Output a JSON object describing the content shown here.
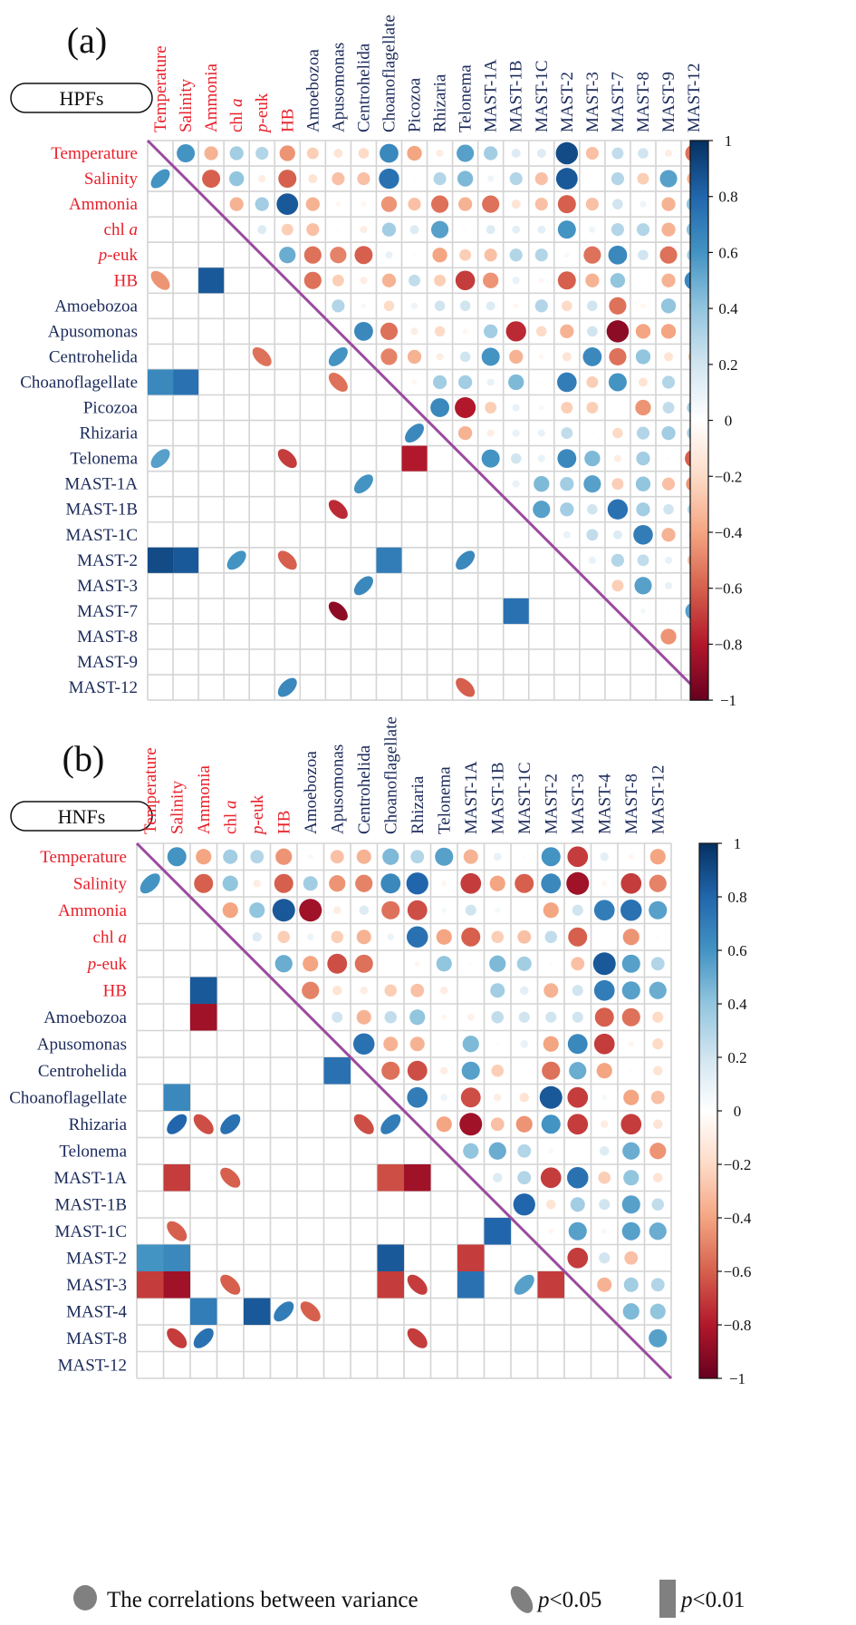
{
  "chart_data": [
    {
      "type": "heatmap",
      "panel_label": "(a)",
      "group_label": "HPFs",
      "variables": [
        "Temperature",
        "Salinity",
        "Ammonia",
        "chl a",
        "p-euk",
        "HB",
        "Amoebozoa",
        "Apusomonas",
        "Centrohelida",
        "Choanoflagellate",
        "Picozoa",
        "Rhizaria",
        "Telonema",
        "MAST-1A",
        "MAST-1B",
        "MAST-1C",
        "MAST-2",
        "MAST-3",
        "MAST-7",
        "MAST-8",
        "MAST-9",
        "MAST-12"
      ],
      "environmental_variables": [
        "Temperature",
        "Salinity",
        "Ammonia",
        "chl a",
        "p-euk",
        "HB"
      ],
      "upper_triangle_rows": [
        [
          0.6,
          -0.35,
          0.35,
          0.3,
          -0.45,
          -0.25,
          -0.15,
          -0.2,
          0.65,
          -0.4,
          -0.1,
          0.55,
          0.35,
          0.15,
          0.15,
          0.9,
          -0.3,
          0.25,
          0.2,
          -0.1,
          -0.55
        ],
        [
          -0.6,
          0.4,
          -0.1,
          -0.6,
          -0.15,
          -0.3,
          -0.3,
          0.75,
          -0.02,
          0.3,
          0.45,
          0.08,
          0.3,
          -0.3,
          0.85,
          -0.02,
          0.3,
          -0.25,
          0.55,
          -0.35
        ],
        [
          -0.35,
          0.35,
          0.85,
          -0.35,
          -0.05,
          -0.05,
          -0.45,
          -0.3,
          -0.55,
          -0.35,
          -0.55,
          -0.15,
          -0.3,
          -0.6,
          -0.3,
          0.2,
          0.08,
          -0.35,
          0.4
        ],
        [
          0.15,
          -0.25,
          -0.3,
          -0.02,
          -0.1,
          0.35,
          0.15,
          0.55,
          -0.02,
          0.15,
          0.12,
          0.12,
          0.6,
          0.08,
          0.3,
          0.3,
          -0.35,
          0.4
        ],
        [
          0.5,
          -0.55,
          -0.5,
          -0.6,
          0.1,
          -0.02,
          -0.4,
          -0.25,
          -0.3,
          0.3,
          0.3,
          0.05,
          -0.55,
          0.65,
          0.2,
          -0.55,
          0.35
        ],
        [
          -0.55,
          -0.25,
          -0.1,
          -0.35,
          0.25,
          -0.25,
          -0.7,
          -0.45,
          0.1,
          -0.05,
          -0.6,
          -0.35,
          0.4,
          0.0,
          -0.35,
          0.65
        ],
        [
          0.3,
          0.05,
          -0.2,
          0.08,
          0.2,
          0.2,
          0.15,
          -0.05,
          0.3,
          -0.2,
          0.2,
          -0.55,
          -0.05,
          0.4,
          -0.2
        ],
        [
          0.65,
          -0.55,
          -0.1,
          -0.2,
          -0.05,
          0.35,
          -0.75,
          -0.2,
          -0.35,
          0.2,
          -0.9,
          -0.4,
          -0.4
        ],
        [
          -0.5,
          -0.35,
          -0.1,
          0.2,
          0.6,
          -0.35,
          -0.05,
          -0.15,
          0.65,
          -0.55,
          0.4,
          -0.15,
          -0.25
        ],
        [
          -0.05,
          0.35,
          0.35,
          0.1,
          0.45,
          -0.02,
          0.7,
          -0.25,
          0.6,
          -0.15,
          0.3,
          -0.15
        ],
        [
          0.65,
          -0.8,
          -0.25,
          0.1,
          0.05,
          -0.25,
          -0.25,
          0.0,
          -0.45,
          0.25,
          0.35
        ],
        [
          -0.35,
          -0.1,
          0.1,
          0.1,
          0.25,
          -0.02,
          -0.2,
          0.3,
          0.35,
          0.35
        ],
        [
          0.6,
          0.2,
          0.1,
          0.65,
          0.45,
          -0.1,
          0.35,
          0.02,
          -0.6
        ],
        [
          0.1,
          0.45,
          0.35,
          0.55,
          -0.25,
          0.4,
          -0.3,
          -0.45
        ],
        [
          0.55,
          0.35,
          0.2,
          0.75,
          0.35,
          0.2,
          0.3
        ],
        [
          0.1,
          0.25,
          0.15,
          0.7,
          -0.35,
          0.2
        ],
        [
          0.1,
          0.3,
          0.25,
          0.1,
          -0.3
        ],
        [
          -0.25,
          0.55,
          0.1,
          0.0
        ],
        [
          0.05,
          0.02,
          0.55
        ],
        [
          -0.45,
          0.1
        ],
        [
          -0.15
        ],
        []
      ],
      "lower_triangle_significant": [
        {
          "row": "Salinity",
          "col": "Temperature",
          "r": 0.6,
          "p": "<0.05"
        },
        {
          "row": "HB",
          "col": "Temperature",
          "r": -0.45,
          "p": "<0.05"
        },
        {
          "row": "HB",
          "col": "Ammonia",
          "r": 0.85,
          "p": "<0.01"
        },
        {
          "row": "Centrohelida",
          "col": "p-euk",
          "r": -0.55,
          "p": "<0.05"
        },
        {
          "row": "Centrohelida",
          "col": "Apusomonas",
          "r": 0.6,
          "p": "<0.05"
        },
        {
          "row": "Choanoflagellate",
          "col": "Temperature",
          "r": 0.65,
          "p": "<0.01"
        },
        {
          "row": "Choanoflagellate",
          "col": "Salinity",
          "r": 0.75,
          "p": "<0.01"
        },
        {
          "row": "Choanoflagellate",
          "col": "Apusomonas",
          "r": -0.55,
          "p": "<0.05"
        },
        {
          "row": "Rhizaria",
          "col": "Picozoa",
          "r": 0.65,
          "p": "<0.05"
        },
        {
          "row": "Telonema",
          "col": "Temperature",
          "r": 0.55,
          "p": "<0.05"
        },
        {
          "row": "Telonema",
          "col": "HB",
          "r": -0.7,
          "p": "<0.05"
        },
        {
          "row": "Telonema",
          "col": "Picozoa",
          "r": -0.8,
          "p": "<0.01"
        },
        {
          "row": "MAST-1A",
          "col": "Centrohelida",
          "r": 0.6,
          "p": "<0.05"
        },
        {
          "row": "MAST-1B",
          "col": "Apusomonas",
          "r": -0.75,
          "p": "<0.05"
        },
        {
          "row": "MAST-2",
          "col": "Temperature",
          "r": 0.9,
          "p": "<0.01"
        },
        {
          "row": "MAST-2",
          "col": "Salinity",
          "r": 0.85,
          "p": "<0.01"
        },
        {
          "row": "MAST-2",
          "col": "chl a",
          "r": 0.6,
          "p": "<0.05"
        },
        {
          "row": "MAST-2",
          "col": "HB",
          "r": -0.6,
          "p": "<0.05"
        },
        {
          "row": "MAST-2",
          "col": "Choanoflagellate",
          "r": 0.7,
          "p": "<0.01"
        },
        {
          "row": "MAST-2",
          "col": "Telonema",
          "r": 0.65,
          "p": "<0.05"
        },
        {
          "row": "MAST-3",
          "col": "Centrohelida",
          "r": 0.65,
          "p": "<0.05"
        },
        {
          "row": "MAST-7",
          "col": "Apusomonas",
          "r": -0.9,
          "p": "<0.05"
        },
        {
          "row": "MAST-7",
          "col": "MAST-1B",
          "r": 0.75,
          "p": "<0.01"
        },
        {
          "row": "MAST-12",
          "col": "HB",
          "r": 0.65,
          "p": "<0.05"
        },
        {
          "row": "MAST-12",
          "col": "Telonema",
          "r": -0.6,
          "p": "<0.05"
        }
      ],
      "colorbar": {
        "min": -1,
        "max": 1,
        "ticks": [
          "1",
          "0.8",
          "0.6",
          "0.4",
          "0.2",
          "0",
          "−0.2",
          "−0.4",
          "−0.6",
          "−0.8",
          "−1"
        ]
      }
    },
    {
      "type": "heatmap",
      "panel_label": "(b)",
      "group_label": "HNFs",
      "variables": [
        "Temperature",
        "Salinity",
        "Ammonia",
        "chl a",
        "p-euk",
        "HB",
        "Amoebozoa",
        "Apusomonas",
        "Centrohelida",
        "Choanoflagellate",
        "Rhizaria",
        "Telonema",
        "MAST-1A",
        "MAST-1B",
        "MAST-1C",
        "MAST-2",
        "MAST-3",
        "MAST-4",
        "MAST-8",
        "MAST-12"
      ],
      "environmental_variables": [
        "Temperature",
        "Salinity",
        "Ammonia",
        "chl a",
        "p-euk",
        "HB"
      ],
      "upper_triangle_rows": [
        [
          0.6,
          -0.4,
          0.35,
          0.3,
          -0.45,
          0.05,
          -0.3,
          -0.35,
          0.45,
          0.3,
          0.55,
          -0.35,
          0.1,
          0.02,
          0.6,
          -0.7,
          0.12,
          -0.05,
          -0.4
        ],
        [
          -0.6,
          0.4,
          -0.1,
          -0.6,
          0.35,
          -0.45,
          -0.5,
          0.65,
          0.8,
          -0.05,
          -0.7,
          -0.4,
          -0.6,
          0.65,
          -0.85,
          -0.05,
          -0.7,
          -0.5
        ],
        [
          -0.4,
          0.4,
          0.85,
          -0.85,
          -0.1,
          0.15,
          -0.55,
          -0.65,
          0.05,
          0.2,
          0.05,
          0.0,
          -0.4,
          0.2,
          0.7,
          0.75,
          0.55
        ],
        [
          0.15,
          -0.25,
          0.08,
          -0.25,
          -0.35,
          0.08,
          0.75,
          -0.4,
          -0.6,
          -0.25,
          -0.3,
          0.25,
          -0.6,
          0.0,
          -0.45,
          -0.02
        ],
        [
          0.5,
          -0.4,
          -0.65,
          -0.55,
          0.0,
          -0.05,
          0.4,
          0.02,
          0.45,
          0.35,
          0.02,
          -0.3,
          0.85,
          0.55,
          0.3
        ],
        [
          -0.5,
          -0.15,
          -0.1,
          -0.25,
          -0.3,
          -0.1,
          0.0,
          0.35,
          0.12,
          -0.35,
          0.2,
          0.7,
          0.55,
          0.5
        ],
        [
          0.2,
          -0.35,
          0.25,
          0.4,
          -0.05,
          -0.08,
          0.25,
          0.2,
          0.2,
          0.2,
          -0.6,
          -0.55,
          -0.2
        ],
        [
          0.75,
          -0.35,
          -0.35,
          0.0,
          0.45,
          -0.02,
          0.1,
          -0.4,
          0.65,
          -0.7,
          -0.05,
          -0.2
        ],
        [
          -0.55,
          -0.65,
          -0.1,
          0.55,
          -0.25,
          0.0,
          -0.55,
          0.5,
          -0.4,
          -0.02,
          -0.15
        ],
        [
          0.7,
          0.08,
          -0.65,
          -0.1,
          -0.15,
          0.85,
          -0.7,
          0.05,
          -0.4,
          -0.3
        ],
        [
          -0.4,
          -0.85,
          -0.3,
          -0.45,
          0.6,
          -0.7,
          -0.1,
          -0.7,
          -0.15
        ],
        [
          0.4,
          0.5,
          0.3,
          0.05,
          0.0,
          0.15,
          0.5,
          -0.45
        ],
        [
          0.15,
          0.3,
          -0.7,
          0.75,
          -0.25,
          0.4,
          -0.15
        ],
        [
          0.8,
          -0.15,
          0.35,
          0.2,
          0.55,
          0.25
        ],
        [
          -0.05,
          0.55,
          0.05,
          0.55,
          0.5
        ],
        [
          -0.7,
          0.2,
          -0.3,
          0.0
        ],
        [
          -0.35,
          0.35,
          0.3
        ],
        [
          0.45,
          0.4
        ],
        [
          0.55
        ],
        []
      ],
      "lower_triangle_significant": [
        {
          "row": "Salinity",
          "col": "Temperature",
          "r": 0.6,
          "p": "<0.05"
        },
        {
          "row": "HB",
          "col": "Ammonia",
          "r": 0.85,
          "p": "<0.01"
        },
        {
          "row": "Amoebozoa",
          "col": "Ammonia",
          "r": -0.85,
          "p": "<0.01"
        },
        {
          "row": "Centrohelida",
          "col": "Apusomonas",
          "r": 0.75,
          "p": "<0.01"
        },
        {
          "row": "Choanoflagellate",
          "col": "Salinity",
          "r": 0.65,
          "p": "<0.01"
        },
        {
          "row": "Rhizaria",
          "col": "Salinity",
          "r": 0.8,
          "p": "<0.05"
        },
        {
          "row": "Rhizaria",
          "col": "Ammonia",
          "r": -0.65,
          "p": "<0.05"
        },
        {
          "row": "Rhizaria",
          "col": "chl a",
          "r": 0.75,
          "p": "<0.05"
        },
        {
          "row": "Rhizaria",
          "col": "Centrohelida",
          "r": -0.65,
          "p": "<0.05"
        },
        {
          "row": "Rhizaria",
          "col": "Choanoflagellate",
          "r": 0.7,
          "p": "<0.05"
        },
        {
          "row": "MAST-1A",
          "col": "Salinity",
          "r": -0.7,
          "p": "<0.01"
        },
        {
          "row": "MAST-1A",
          "col": "chl a",
          "r": -0.6,
          "p": "<0.05"
        },
        {
          "row": "MAST-1A",
          "col": "Choanoflagellate",
          "r": -0.65,
          "p": "<0.01"
        },
        {
          "row": "MAST-1A",
          "col": "Rhizaria",
          "r": -0.85,
          "p": "<0.01"
        },
        {
          "row": "MAST-1C",
          "col": "Salinity",
          "r": -0.6,
          "p": "<0.05"
        },
        {
          "row": "MAST-1C",
          "col": "MAST-1B",
          "r": 0.8,
          "p": "<0.01"
        },
        {
          "row": "MAST-2",
          "col": "Temperature",
          "r": 0.6,
          "p": "<0.01"
        },
        {
          "row": "MAST-2",
          "col": "Salinity",
          "r": 0.65,
          "p": "<0.01"
        },
        {
          "row": "MAST-2",
          "col": "Choanoflagellate",
          "r": 0.85,
          "p": "<0.01"
        },
        {
          "row": "MAST-2",
          "col": "MAST-1A",
          "r": -0.7,
          "p": "<0.01"
        },
        {
          "row": "MAST-3",
          "col": "Temperature",
          "r": -0.7,
          "p": "<0.01"
        },
        {
          "row": "MAST-3",
          "col": "Salinity",
          "r": -0.85,
          "p": "<0.01"
        },
        {
          "row": "MAST-3",
          "col": "chl a",
          "r": -0.6,
          "p": "<0.05"
        },
        {
          "row": "MAST-3",
          "col": "Choanoflagellate",
          "r": -0.7,
          "p": "<0.01"
        },
        {
          "row": "MAST-3",
          "col": "Rhizaria",
          "r": -0.7,
          "p": "<0.05"
        },
        {
          "row": "MAST-3",
          "col": "MAST-1A",
          "r": 0.75,
          "p": "<0.01"
        },
        {
          "row": "MAST-3",
          "col": "MAST-1C",
          "r": 0.55,
          "p": "<0.05"
        },
        {
          "row": "MAST-3",
          "col": "MAST-2",
          "r": -0.7,
          "p": "<0.01"
        },
        {
          "row": "MAST-4",
          "col": "Ammonia",
          "r": 0.7,
          "p": "<0.01"
        },
        {
          "row": "MAST-4",
          "col": "p-euk",
          "r": 0.85,
          "p": "<0.01"
        },
        {
          "row": "MAST-4",
          "col": "HB",
          "r": 0.7,
          "p": "<0.05"
        },
        {
          "row": "MAST-4",
          "col": "Amoebozoa",
          "r": -0.6,
          "p": "<0.05"
        },
        {
          "row": "MAST-8",
          "col": "Salinity",
          "r": -0.7,
          "p": "<0.05"
        },
        {
          "row": "MAST-8",
          "col": "Ammonia",
          "r": 0.75,
          "p": "<0.05"
        },
        {
          "row": "MAST-8",
          "col": "Rhizaria",
          "r": -0.7,
          "p": "<0.05"
        }
      ],
      "colorbar": {
        "min": -1,
        "max": 1,
        "ticks": [
          "1",
          "0.8",
          "0.6",
          "0.4",
          "0.2",
          "0",
          "−0.2",
          "−0.4",
          "−0.6",
          "−0.8",
          "−1"
        ]
      }
    }
  ],
  "legend": {
    "circle_label": "The correlations between variance",
    "ellipse_label": "p<0.05",
    "square_label": "p<0.01",
    "p_symbol": "p",
    "ellipse_suffix": "<0.05",
    "square_suffix": "<0.01"
  },
  "colors": {
    "env_label": "#e8202a",
    "taxa_label": "#1b2a5a",
    "diagonal": "#9b4a9e",
    "grid": "#d4d4d4",
    "legend_marker": "#808080"
  }
}
